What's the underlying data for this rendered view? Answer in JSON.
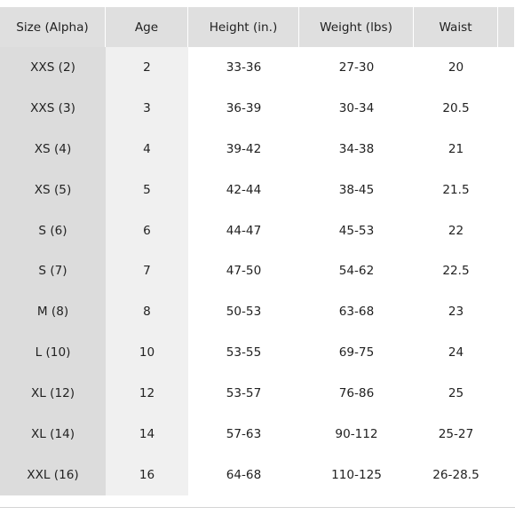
{
  "size_chart": {
    "headers": [
      "Size (Alpha)",
      "Age",
      "Height (in.)",
      "Weight (lbs)",
      "Waist",
      ""
    ],
    "rows": [
      [
        "XXS (2)",
        "2",
        "33-36",
        "27-30",
        "20"
      ],
      [
        "XXS (3)",
        "3",
        "36-39",
        "30-34",
        "20.5"
      ],
      [
        "XS (4)",
        "4",
        "39-42",
        "34-38",
        "21"
      ],
      [
        "XS (5)",
        "5",
        "42-44",
        "38-45",
        "21.5"
      ],
      [
        "S (6)",
        "6",
        "44-47",
        "45-53",
        "22"
      ],
      [
        "S (7)",
        "7",
        "47-50",
        "54-62",
        "22.5"
      ],
      [
        "M (8)",
        "8",
        "50-53",
        "63-68",
        "23"
      ],
      [
        "L (10)",
        "10",
        "53-55",
        "69-75",
        "24"
      ],
      [
        "XL (12)",
        "12",
        "53-57",
        "76-86",
        "25"
      ],
      [
        "XL (14)",
        "14",
        "57-63",
        "90-112",
        "25-27"
      ],
      [
        "XXL (16)",
        "16",
        "64-68",
        "110-125",
        "26-28.5"
      ]
    ]
  }
}
